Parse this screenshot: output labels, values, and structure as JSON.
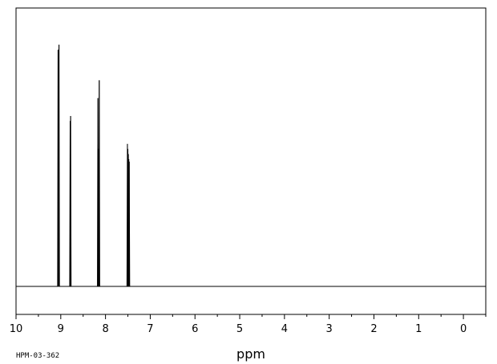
{
  "chart_data": {
    "type": "line",
    "title": "",
    "xlabel": "ppm",
    "ylabel": "",
    "xlim": [
      10,
      -0.5
    ],
    "x_reversed": true,
    "ylim": [
      0,
      1
    ],
    "grid": false,
    "legend": "none",
    "spectrum_id": "HPM-03-362",
    "major_ticks": [
      10,
      9,
      8,
      7,
      6,
      5,
      4,
      3,
      2,
      1,
      0
    ],
    "minor_tick_step": 0.5,
    "tick_labels": [
      "10",
      "9",
      "8",
      "7",
      "6",
      "5",
      "4",
      "3",
      "2",
      "1",
      "0"
    ],
    "baseline": 0.0,
    "peaks": [
      {
        "x": 9.06,
        "y": 0.93
      },
      {
        "x": 9.04,
        "y": 0.95
      },
      {
        "x": 8.79,
        "y": 0.65
      },
      {
        "x": 8.78,
        "y": 0.67
      },
      {
        "x": 8.17,
        "y": 0.74
      },
      {
        "x": 8.155,
        "y": 0.54
      },
      {
        "x": 8.14,
        "y": 0.81
      },
      {
        "x": 7.51,
        "y": 0.56
      },
      {
        "x": 7.5,
        "y": 0.54
      },
      {
        "x": 7.49,
        "y": 0.52
      },
      {
        "x": 7.48,
        "y": 0.5
      },
      {
        "x": 7.47,
        "y": 0.49
      }
    ]
  }
}
